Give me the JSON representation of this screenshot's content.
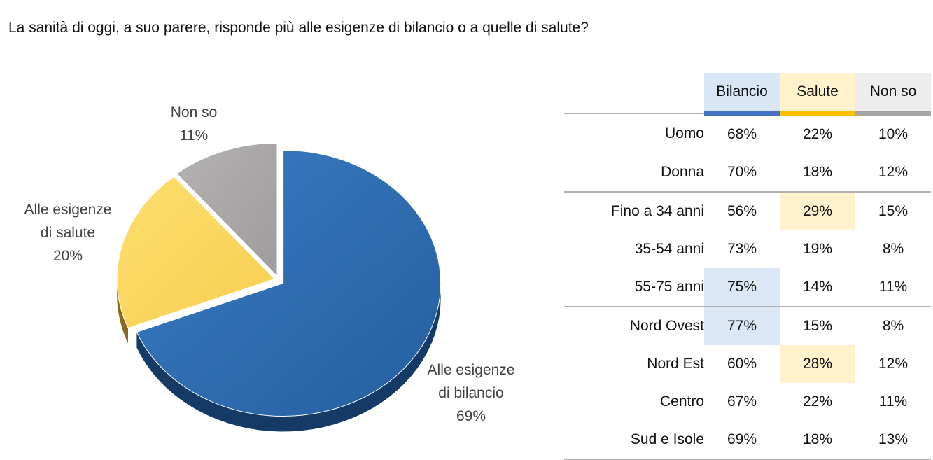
{
  "title": "La sanità di oggi, a suo parere, risponde più alle esigenze di bilancio o a quelle di salute?",
  "chart_data": {
    "type": "pie",
    "title": "La sanità di oggi, a suo parere, risponde più alle esigenze di bilancio o a quelle di salute?",
    "slices": [
      {
        "label_lines": [
          "Alle esigenze",
          "di bilancio"
        ],
        "value": 69,
        "value_label": "69%",
        "color": "#2e6db4"
      },
      {
        "label_lines": [
          "Alle esigenze",
          "di salute"
        ],
        "value": 20,
        "value_label": "20%",
        "color": "#ffd75e"
      },
      {
        "label_lines": [
          "Non so"
        ],
        "value": 11,
        "value_label": "11%",
        "color": "#a9a7a7"
      }
    ]
  },
  "table": {
    "columns": [
      {
        "label": "Bilancio",
        "accent": "#4472c4"
      },
      {
        "label": "Salute",
        "accent": "#ffc000"
      },
      {
        "label": "Non so",
        "accent": "#a5a5a5"
      }
    ],
    "rows": [
      {
        "label": "Uomo",
        "values": [
          "68%",
          "22%",
          "10%"
        ],
        "highlight": null
      },
      {
        "label": "Donna",
        "values": [
          "70%",
          "18%",
          "12%"
        ],
        "highlight": null
      },
      {
        "label": "Fino a 34 anni",
        "values": [
          "56%",
          "29%",
          "15%"
        ],
        "highlight": "salute"
      },
      {
        "label": "35-54 anni",
        "values": [
          "73%",
          "19%",
          "8%"
        ],
        "highlight": null
      },
      {
        "label": "55-75 anni",
        "values": [
          "75%",
          "14%",
          "11%"
        ],
        "highlight": "bilancio"
      },
      {
        "label": "Nord Ovest",
        "values": [
          "77%",
          "15%",
          "8%"
        ],
        "highlight": "bilancio"
      },
      {
        "label": "Nord Est",
        "values": [
          "60%",
          "28%",
          "12%"
        ],
        "highlight": "salute"
      },
      {
        "label": "Centro",
        "values": [
          "67%",
          "22%",
          "11%"
        ],
        "highlight": null
      },
      {
        "label": "Sud e Isole",
        "values": [
          "69%",
          "18%",
          "13%"
        ],
        "highlight": null
      }
    ]
  }
}
